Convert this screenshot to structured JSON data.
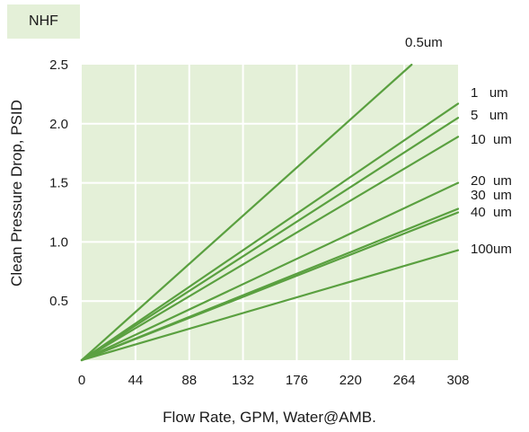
{
  "chart_data": {
    "type": "line",
    "title": "NHF",
    "xlabel": "Flow Rate, GPM, Water@AMB.",
    "ylabel": "Clean Pressure Drop, PSID",
    "xlim": [
      0,
      308
    ],
    "ylim": [
      0,
      2.5
    ],
    "x_ticks": [
      "0",
      "44",
      "88",
      "132",
      "176",
      "220",
      "264",
      "308"
    ],
    "y_ticks": [
      "0.5",
      "1.0",
      "1.5",
      "2.0",
      "2.5"
    ],
    "grid": true,
    "series": [
      {
        "name": "0.5um",
        "x": [
          0,
          270
        ],
        "y": [
          0,
          2.5
        ]
      },
      {
        "name": "1   um",
        "x": [
          0,
          308
        ],
        "y": [
          0,
          2.17
        ]
      },
      {
        "name": "5   um",
        "x": [
          0,
          308
        ],
        "y": [
          0,
          2.05
        ]
      },
      {
        "name": "10  um",
        "x": [
          0,
          308
        ],
        "y": [
          0,
          1.89
        ]
      },
      {
        "name": "20  um",
        "x": [
          0,
          308
        ],
        "y": [
          0,
          1.5
        ]
      },
      {
        "name": "30  um",
        "x": [
          0,
          308
        ],
        "y": [
          0,
          1.28
        ]
      },
      {
        "name": "40  um",
        "x": [
          0,
          308
        ],
        "y": [
          0,
          1.25
        ]
      },
      {
        "name": "100um",
        "x": [
          0,
          308
        ],
        "y": [
          0,
          0.93
        ]
      }
    ],
    "colors": {
      "line": "#5aa040",
      "plot_bg": "#e4f0d8",
      "grid": "#ffffff"
    }
  }
}
